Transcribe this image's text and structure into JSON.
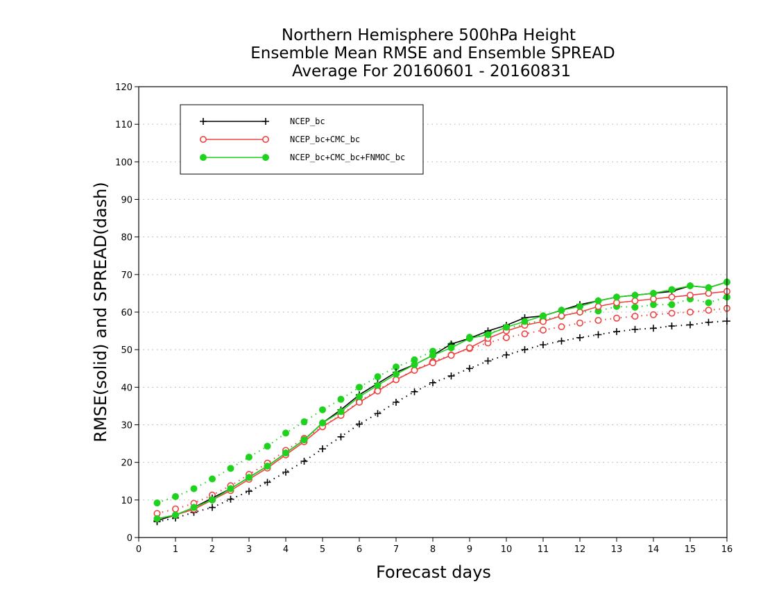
{
  "chart_data": {
    "type": "line",
    "title": [
      "Northern Hemisphere 500hPa Height",
      "Ensemble Mean RMSE and Ensemble SPREAD",
      "Average For 20160601 - 20160831"
    ],
    "xlabel": "Forecast days",
    "ylabel": "RMSE(solid) and SPREAD(dash)",
    "xlim": [
      0,
      16
    ],
    "ylim": [
      0,
      120
    ],
    "xticks": [
      0,
      1,
      2,
      3,
      4,
      5,
      6,
      7,
      8,
      9,
      10,
      11,
      12,
      13,
      14,
      15,
      16
    ],
    "yticks": [
      0,
      10,
      20,
      30,
      40,
      50,
      60,
      70,
      80,
      90,
      100,
      110,
      120
    ],
    "grid": true,
    "legend_position": "top-left",
    "x": [
      0.5,
      1,
      1.5,
      2,
      2.5,
      3,
      3.5,
      4,
      4.5,
      5,
      5.5,
      6,
      6.5,
      7,
      7.5,
      8,
      8.5,
      9,
      9.5,
      10,
      10.5,
      11,
      11.5,
      12,
      12.5,
      13,
      13.5,
      14,
      14.5,
      15,
      15.5,
      16
    ],
    "series": [
      {
        "name": "NCEP_bc",
        "color": "#000000",
        "marker": "plus",
        "rmse": [
          4.5,
          6,
          8,
          10.5,
          13,
          16,
          19,
          22.5,
          26,
          30.5,
          34,
          38,
          41,
          44,
          46,
          48.5,
          51.5,
          53,
          55,
          56.5,
          58.5,
          59,
          60.5,
          62,
          63,
          64,
          64.5,
          65,
          65.5,
          67,
          66.5,
          68
        ],
        "spread": [
          4.2,
          5.2,
          6.7,
          8,
          10.2,
          12.3,
          14.7,
          17.4,
          20.3,
          23.6,
          26.8,
          30.2,
          33,
          36,
          38.8,
          41.2,
          43,
          45,
          47,
          48.6,
          50,
          51.3,
          52.3,
          53.2,
          54,
          54.8,
          55.4,
          55.7,
          56.3,
          56.6,
          57.3,
          57.6
        ]
      },
      {
        "name": "NCEP_bc+CMC_bc",
        "color": "#f04040",
        "marker": "open-circle",
        "rmse": [
          5,
          6,
          7.5,
          10,
          12.5,
          15.5,
          18.5,
          22,
          25.5,
          29.5,
          32.5,
          36,
          39,
          42,
          44.5,
          46.5,
          48.5,
          50.5,
          53,
          55,
          56.5,
          57.5,
          59,
          60,
          61.5,
          62.5,
          63,
          63.5,
          64,
          64.5,
          65,
          65.5
        ],
        "spread": [
          6.4,
          7.6,
          9.1,
          11.3,
          13.8,
          16.8,
          19.8,
          23.2,
          26.4,
          29.5,
          32.7,
          36.2,
          39.3,
          42,
          44.6,
          46.8,
          48.6,
          50.3,
          51.8,
          53.2,
          54.2,
          55.2,
          56.1,
          57.1,
          57.8,
          58.4,
          58.9,
          59.3,
          59.7,
          60,
          60.5,
          61
        ]
      },
      {
        "name": "NCEP_bc+CMC_bc+FNMOC_bc",
        "color": "#1ed21e",
        "marker": "filled-circle",
        "rmse": [
          5,
          6,
          8,
          10,
          13,
          16,
          19,
          22.5,
          26,
          30.5,
          33.5,
          37.5,
          40.5,
          43.5,
          46,
          48.5,
          50.5,
          53,
          54,
          56,
          57.5,
          59,
          60.5,
          61.5,
          63,
          64,
          64.5,
          65,
          66,
          67,
          66.5,
          68
        ],
        "spread": [
          9.2,
          10.9,
          13,
          15.6,
          18.4,
          21.4,
          24.3,
          27.8,
          30.8,
          34,
          36.8,
          40,
          42.8,
          45.4,
          47.3,
          49.6,
          51.2,
          53.3,
          54.3,
          55.7,
          56.7,
          58,
          58.9,
          60,
          60.3,
          61.5,
          61.3,
          62,
          62,
          63.5,
          62.5,
          64
        ]
      }
    ]
  }
}
